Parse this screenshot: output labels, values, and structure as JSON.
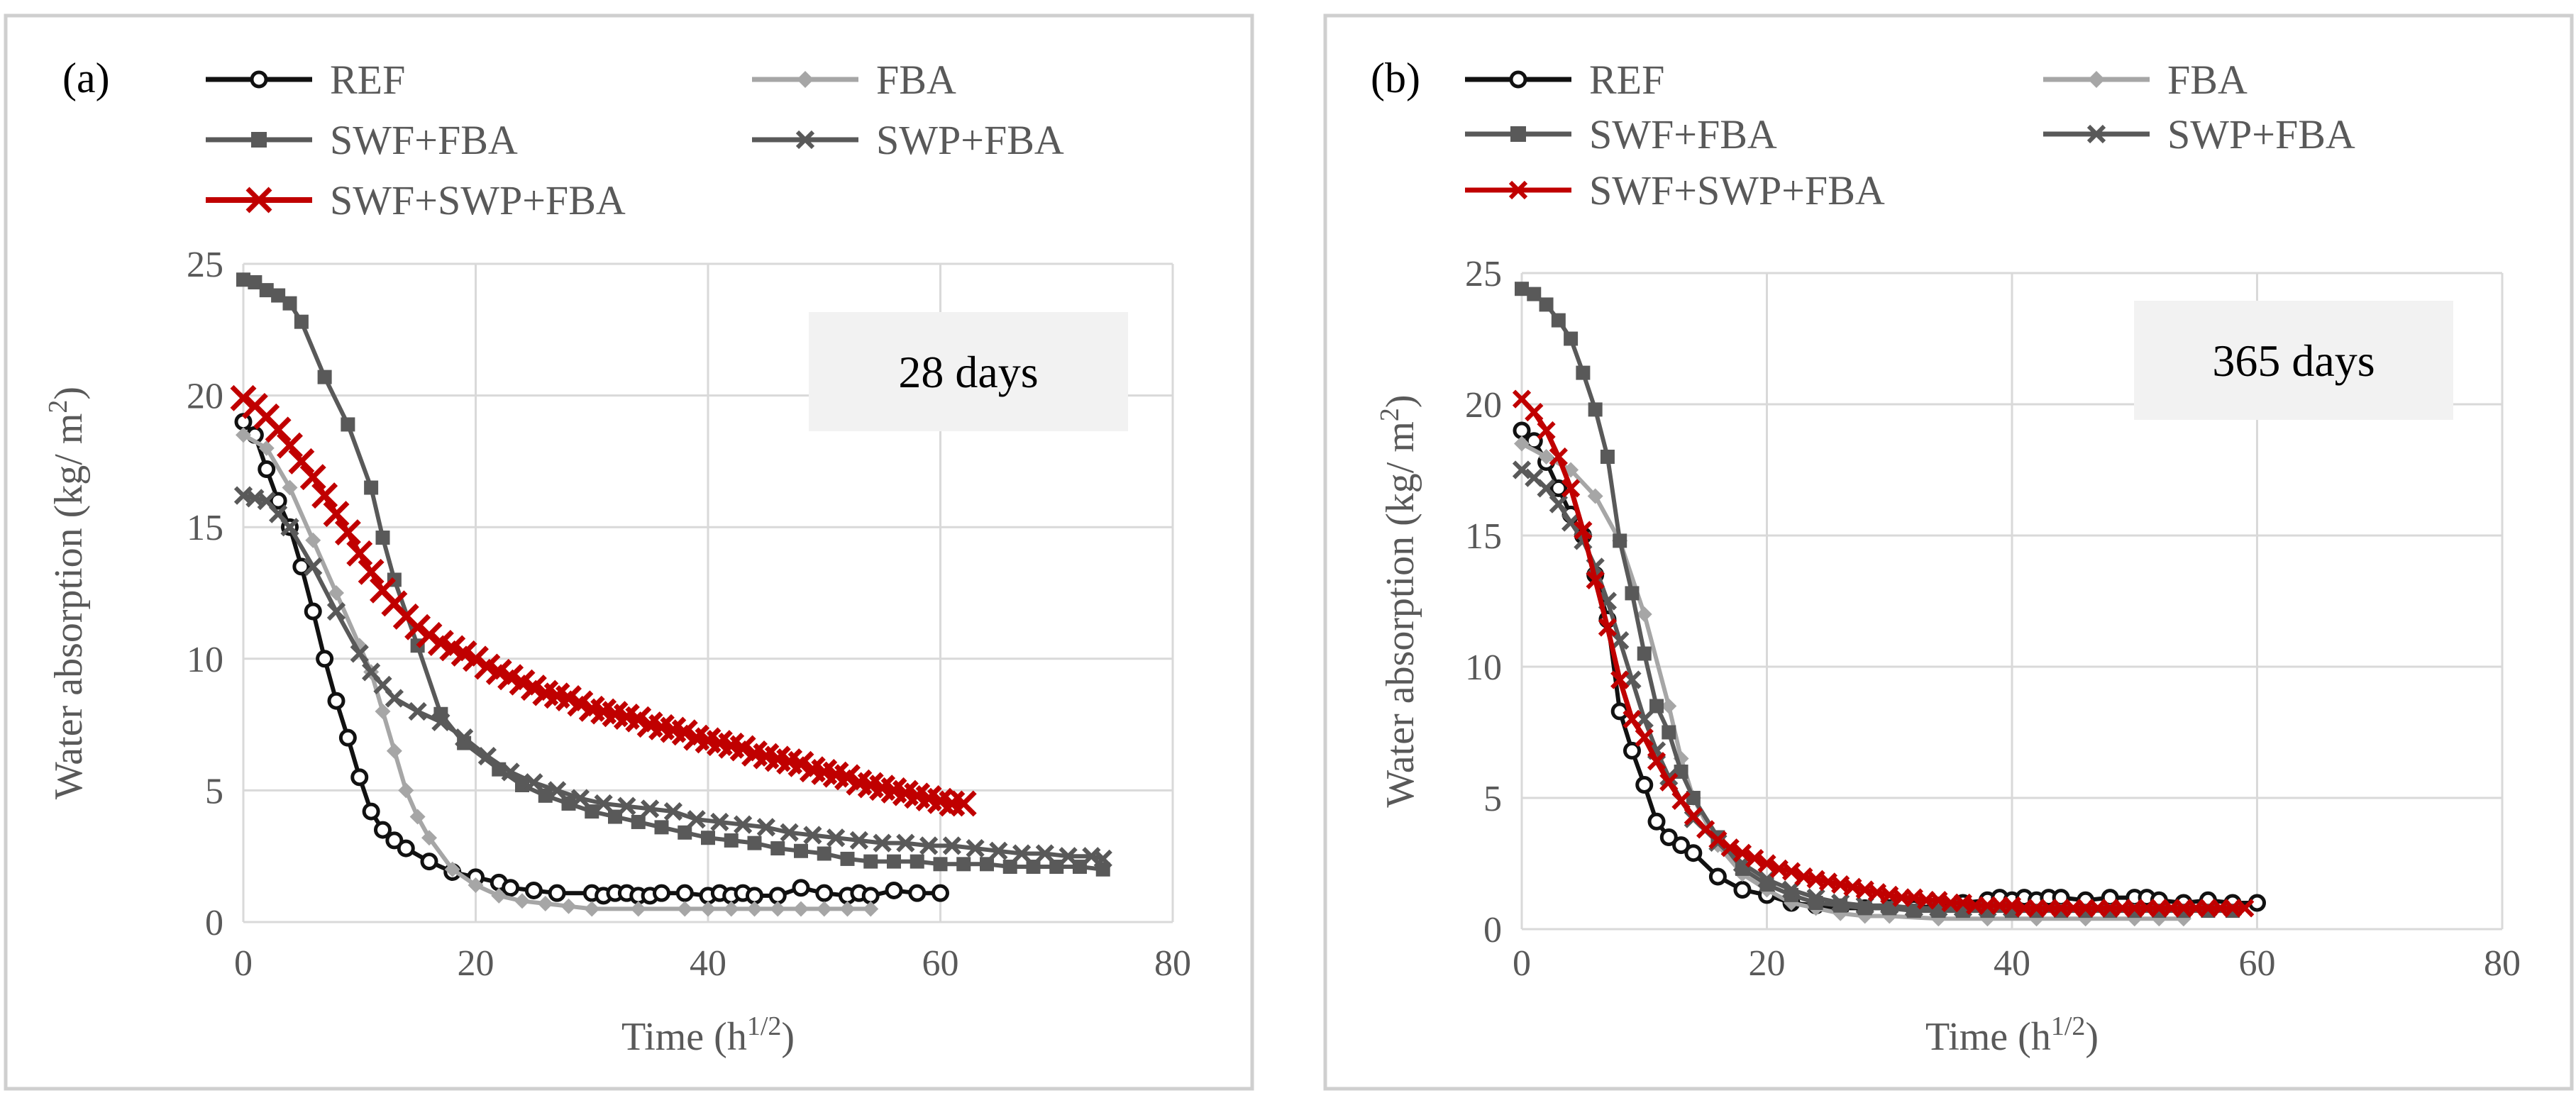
{
  "colors": {
    "ref": "#111111",
    "fba": "#a6a6a6",
    "swf_fba": "#595959",
    "swp_fba": "#595959",
    "swf_swp_fba": "#c00000",
    "grid": "#d9d9d9",
    "border": "#cfcfcf",
    "badge_bg": "#f2f2f2"
  },
  "chart_data": [
    {
      "type": "line",
      "panel_label": "(a)",
      "annotation": "28 days",
      "xlabel": "Time (h",
      "xlabel_sup": "1/2",
      "xlabel_end": ")",
      "ylabel": "Water absorption  (kg/ m",
      "ylabel_sup": "2",
      "ylabel_end": ")",
      "xlim": [
        0,
        80
      ],
      "ylim": [
        0,
        25
      ],
      "xticks": [
        "0",
        "20",
        "40",
        "60",
        "80"
      ],
      "yticks": [
        "0",
        "5",
        "10",
        "15",
        "20",
        "25"
      ],
      "legend_position": "top",
      "series": [
        {
          "name": "REF",
          "marker": "circle",
          "color": "#111111",
          "x": [
            0,
            1,
            2,
            3,
            4,
            5,
            6,
            7,
            8,
            9,
            10,
            11,
            12,
            13,
            14,
            16,
            18,
            20,
            22,
            23,
            25,
            27,
            30,
            31,
            32,
            33,
            34,
            35,
            36,
            38,
            40,
            41,
            42,
            43,
            44,
            46,
            48,
            50,
            52,
            53,
            54,
            56,
            58,
            60
          ],
          "y": [
            19.0,
            18.5,
            17.2,
            16.0,
            15.0,
            13.5,
            11.8,
            10.0,
            8.4,
            7.0,
            5.5,
            4.2,
            3.5,
            3.1,
            2.8,
            2.3,
            1.9,
            1.7,
            1.5,
            1.3,
            1.2,
            1.1,
            1.1,
            1.0,
            1.1,
            1.1,
            1.0,
            1.0,
            1.1,
            1.1,
            1.0,
            1.1,
            1.0,
            1.1,
            1.0,
            1.0,
            1.3,
            1.1,
            1.0,
            1.1,
            1.0,
            1.2,
            1.1,
            1.1
          ]
        },
        {
          "name": "FBA",
          "marker": "diamond",
          "color": "#a6a6a6",
          "x": [
            0,
            2,
            4,
            6,
            8,
            10,
            11,
            12,
            13,
            14,
            15,
            16,
            18,
            20,
            22,
            24,
            26,
            28,
            30,
            34,
            38,
            40,
            42,
            44,
            46,
            48,
            50,
            52,
            54
          ],
          "y": [
            18.5,
            18.0,
            16.5,
            14.5,
            12.5,
            10.5,
            9.5,
            8.0,
            6.5,
            5.0,
            4.0,
            3.2,
            2.0,
            1.4,
            1.0,
            0.8,
            0.7,
            0.6,
            0.5,
            0.5,
            0.5,
            0.5,
            0.5,
            0.5,
            0.5,
            0.5,
            0.5,
            0.5,
            0.5
          ]
        },
        {
          "name": "SWF+FBA",
          "marker": "square",
          "color": "#595959",
          "x": [
            0,
            1,
            2,
            3,
            4,
            5,
            7,
            9,
            11,
            12,
            13,
            15,
            17,
            19,
            22,
            24,
            26,
            28,
            30,
            32,
            34,
            36,
            38,
            40,
            42,
            44,
            46,
            48,
            50,
            52,
            54,
            56,
            58,
            60,
            62,
            64,
            66,
            68,
            70,
            72,
            74
          ],
          "y": [
            24.4,
            24.3,
            24.0,
            23.8,
            23.5,
            22.8,
            20.7,
            18.9,
            16.5,
            14.6,
            13.0,
            10.5,
            7.9,
            6.8,
            5.8,
            5.2,
            4.8,
            4.5,
            4.2,
            4.0,
            3.8,
            3.6,
            3.4,
            3.2,
            3.1,
            3.0,
            2.8,
            2.7,
            2.6,
            2.4,
            2.3,
            2.3,
            2.3,
            2.2,
            2.2,
            2.2,
            2.1,
            2.1,
            2.1,
            2.1,
            2.0
          ]
        },
        {
          "name": "SWP+FBA",
          "marker": "x",
          "color": "#595959",
          "x": [
            0,
            1,
            2,
            3,
            4,
            6,
            8,
            10,
            11,
            12,
            13,
            15,
            17,
            19,
            21,
            23,
            25,
            27,
            29,
            31,
            33,
            35,
            37,
            39,
            41,
            43,
            45,
            47,
            49,
            51,
            53,
            55,
            57,
            59,
            61,
            63,
            65,
            67,
            69,
            71,
            73,
            74
          ],
          "y": [
            16.2,
            16.1,
            16.0,
            15.5,
            15.0,
            13.5,
            11.8,
            10.2,
            9.5,
            9.0,
            8.5,
            8.0,
            7.6,
            7.0,
            6.3,
            5.7,
            5.3,
            5.0,
            4.7,
            4.5,
            4.4,
            4.3,
            4.2,
            3.9,
            3.8,
            3.7,
            3.6,
            3.4,
            3.3,
            3.2,
            3.1,
            3.0,
            3.0,
            2.9,
            2.9,
            2.8,
            2.7,
            2.6,
            2.6,
            2.5,
            2.5,
            2.4
          ]
        },
        {
          "name": "SWF+SWP+FBA",
          "marker": "x",
          "color": "#c00000",
          "x": [
            0,
            1,
            2,
            3,
            4,
            5,
            6,
            7,
            8,
            9,
            10,
            11,
            12,
            13,
            14,
            15,
            16,
            17,
            18,
            19,
            20,
            21,
            22,
            23,
            24,
            25,
            26,
            27,
            28,
            29,
            30,
            31,
            32,
            33,
            34,
            35,
            36,
            37,
            38,
            39,
            40,
            41,
            42,
            43,
            44,
            45,
            46,
            47,
            48,
            49,
            50,
            51,
            52,
            53,
            54,
            55,
            56,
            57,
            58,
            59,
            60,
            61,
            62
          ],
          "y": [
            19.9,
            19.6,
            19.2,
            18.7,
            18.1,
            17.5,
            16.9,
            16.2,
            15.5,
            14.8,
            14.0,
            13.3,
            12.6,
            12.1,
            11.6,
            11.2,
            10.9,
            10.6,
            10.4,
            10.2,
            10.0,
            9.7,
            9.5,
            9.3,
            9.1,
            8.9,
            8.7,
            8.6,
            8.5,
            8.3,
            8.1,
            8.0,
            7.9,
            7.8,
            7.7,
            7.5,
            7.4,
            7.3,
            7.2,
            7.0,
            6.9,
            6.8,
            6.7,
            6.6,
            6.4,
            6.3,
            6.2,
            6.1,
            6.0,
            5.8,
            5.7,
            5.6,
            5.5,
            5.3,
            5.2,
            5.1,
            5.0,
            4.9,
            4.8,
            4.7,
            4.6,
            4.5,
            4.5
          ]
        }
      ]
    },
    {
      "type": "line",
      "panel_label": "(b)",
      "annotation": "365 days",
      "xlabel": "Time (h",
      "xlabel_sup": "1/2",
      "xlabel_end": ")",
      "ylabel": "Water absorption  (kg/ m",
      "ylabel_sup": "2",
      "ylabel_end": ")",
      "xlim": [
        0,
        80
      ],
      "ylim": [
        0,
        25
      ],
      "xticks": [
        "0",
        "20",
        "40",
        "60",
        "80"
      ],
      "yticks": [
        "0",
        "5",
        "10",
        "15",
        "20",
        "25"
      ],
      "legend_position": "top",
      "series": [
        {
          "name": "REF",
          "marker": "circle",
          "color": "#111111",
          "x": [
            0,
            1,
            2,
            3,
            4,
            5,
            6,
            7,
            8,
            9,
            10,
            11,
            12,
            13,
            14,
            16,
            18,
            20,
            22,
            24,
            26,
            28,
            30,
            32,
            34,
            36,
            38,
            39,
            40,
            41,
            42,
            43,
            44,
            46,
            48,
            50,
            51,
            52,
            54,
            56,
            58,
            60
          ],
          "y": [
            19.0,
            18.6,
            17.8,
            16.8,
            15.8,
            15.0,
            13.5,
            11.8,
            8.3,
            6.8,
            5.5,
            4.1,
            3.5,
            3.2,
            2.9,
            2.0,
            1.5,
            1.3,
            1.0,
            0.9,
            0.8,
            0.8,
            0.8,
            0.8,
            0.9,
            1.0,
            1.1,
            1.2,
            1.1,
            1.2,
            1.1,
            1.2,
            1.2,
            1.1,
            1.2,
            1.2,
            1.2,
            1.1,
            1.0,
            1.1,
            1.0,
            1.0
          ]
        },
        {
          "name": "FBA",
          "marker": "diamond",
          "color": "#a6a6a6",
          "x": [
            0,
            2,
            4,
            6,
            8,
            10,
            12,
            13,
            14,
            16,
            18,
            20,
            22,
            24,
            26,
            28,
            30,
            34,
            38,
            42,
            46,
            50,
            52,
            54
          ],
          "y": [
            18.5,
            18.0,
            17.5,
            16.5,
            14.8,
            12.0,
            8.5,
            6.5,
            5.0,
            3.2,
            2.1,
            1.5,
            1.0,
            0.8,
            0.6,
            0.5,
            0.5,
            0.4,
            0.4,
            0.4,
            0.4,
            0.4,
            0.4,
            0.4
          ]
        },
        {
          "name": "SWF+FBA",
          "marker": "square",
          "color": "#595959",
          "x": [
            0,
            1,
            2,
            3,
            4,
            5,
            6,
            7,
            8,
            9,
            10,
            11,
            12,
            13,
            14,
            16,
            18,
            20,
            22,
            24,
            26,
            28,
            30,
            32,
            34,
            36,
            38,
            40,
            42,
            44,
            46,
            48,
            50,
            52,
            54,
            56,
            58
          ],
          "y": [
            24.4,
            24.2,
            23.8,
            23.2,
            22.5,
            21.2,
            19.8,
            18.0,
            14.8,
            12.8,
            10.5,
            8.5,
            7.5,
            6.0,
            5.0,
            3.5,
            2.3,
            1.7,
            1.3,
            1.0,
            0.9,
            0.8,
            0.8,
            0.7,
            0.7,
            0.7,
            0.7,
            0.7,
            0.7,
            0.7,
            0.7,
            0.7,
            0.7,
            0.7,
            0.7,
            0.7,
            0.7
          ]
        },
        {
          "name": "SWP+FBA",
          "marker": "x",
          "color": "#595959",
          "x": [
            0,
            1,
            2,
            3,
            4,
            5,
            6,
            7,
            8,
            9,
            10,
            11,
            12,
            13,
            14,
            16,
            18,
            20,
            22,
            24,
            26,
            28,
            30,
            32,
            34,
            36,
            38,
            40,
            42,
            44,
            46,
            48,
            50,
            52,
            54,
            56,
            58
          ],
          "y": [
            17.5,
            17.2,
            16.8,
            16.2,
            15.5,
            14.8,
            13.8,
            12.5,
            11.0,
            9.5,
            8.0,
            6.8,
            5.8,
            4.9,
            4.2,
            3.3,
            2.5,
            1.9,
            1.5,
            1.2,
            1.0,
            0.9,
            0.9,
            0.8,
            0.8,
            0.8,
            0.8,
            0.8,
            0.8,
            0.8,
            0.8,
            0.8,
            0.8,
            0.8,
            0.8,
            0.8,
            0.8
          ]
        },
        {
          "name": "SWF+SWP+FBA",
          "marker": "x",
          "color": "#c00000",
          "x": [
            0,
            1,
            2,
            3,
            4,
            5,
            6,
            7,
            8,
            9,
            10,
            11,
            12,
            13,
            14,
            15,
            16,
            17,
            18,
            19,
            20,
            21,
            22,
            23,
            24,
            25,
            26,
            27,
            28,
            29,
            30,
            31,
            32,
            33,
            34,
            35,
            36,
            37,
            38,
            39,
            40,
            41,
            42,
            43,
            44,
            45,
            46,
            47,
            48,
            49,
            50,
            51,
            52,
            53,
            54,
            55,
            56,
            57,
            58,
            59
          ],
          "y": [
            20.2,
            19.7,
            19.0,
            18.0,
            16.8,
            15.2,
            13.3,
            11.5,
            9.5,
            8.0,
            7.3,
            6.4,
            5.6,
            4.9,
            4.3,
            3.8,
            3.4,
            3.1,
            2.9,
            2.7,
            2.5,
            2.3,
            2.2,
            2.0,
            1.9,
            1.8,
            1.7,
            1.6,
            1.5,
            1.4,
            1.3,
            1.2,
            1.2,
            1.1,
            1.1,
            1.0,
            1.0,
            0.9,
            0.9,
            0.9,
            0.9,
            0.8,
            0.8,
            0.8,
            0.8,
            0.8,
            0.8,
            0.8,
            0.8,
            0.8,
            0.8,
            0.8,
            0.8,
            0.8,
            0.8,
            0.8,
            0.8,
            0.8,
            0.8,
            0.8
          ]
        }
      ]
    }
  ]
}
